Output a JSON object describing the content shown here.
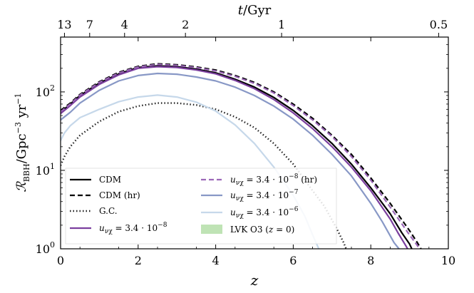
{
  "chart_data": {
    "type": "line",
    "xlabel": "z",
    "ylabel": "R_BBH/Gpc^-3 yr^-1",
    "top_axis_label": "t/Gyr",
    "top_ticks": [
      {
        "label": "13",
        "z": 0.1
      },
      {
        "label": "7",
        "z": 0.75
      },
      {
        "label": "4",
        "z": 1.65
      },
      {
        "label": "2",
        "z": 3.22
      },
      {
        "label": "1",
        "z": 5.7
      },
      {
        "label": "0.5",
        "z": 9.75
      }
    ],
    "xlim": [
      0,
      10
    ],
    "ylim": [
      1,
      500
    ],
    "yscale": "log",
    "x_ticks": [
      "0",
      "2",
      "4",
      "6",
      "8",
      "10"
    ],
    "y_ticks": [
      {
        "label": "10^0",
        "value": 1
      },
      {
        "label": "10^1",
        "value": 10
      },
      {
        "label": "10^2",
        "value": 100
      }
    ],
    "legend_position": "lower-left",
    "series": [
      {
        "name": "CDM",
        "color": "#000000",
        "dash": "solid",
        "width": 2.2,
        "x": [
          0,
          0.25,
          0.5,
          1,
          1.5,
          2,
          2.5,
          3,
          3.5,
          4,
          4.5,
          5,
          5.5,
          6,
          6.5,
          7,
          7.5,
          8,
          8.5,
          8.8,
          9.0,
          9.1
        ],
        "y": [
          55,
          70,
          90,
          130,
          170,
          205,
          215,
          210,
          195,
          175,
          145,
          115,
          85,
          58,
          37,
          22,
          12,
          6,
          2.8,
          1.6,
          1.15,
          0.9
        ]
      },
      {
        "name": "CDM (hr)",
        "color": "#000000",
        "dash": "7,4",
        "width": 2.2,
        "x": [
          0,
          0.25,
          0.5,
          1,
          1.5,
          2,
          2.5,
          3,
          3.5,
          4,
          4.5,
          5,
          5.5,
          6,
          6.5,
          7,
          7.5,
          8,
          8.5,
          9.0,
          9.2,
          9.35
        ],
        "y": [
          58,
          72,
          93,
          135,
          178,
          212,
          228,
          222,
          208,
          190,
          162,
          132,
          100,
          70,
          46,
          28,
          16,
          8,
          3.8,
          1.7,
          1.2,
          0.9
        ]
      },
      {
        "name": "G.C.",
        "color": "#222222",
        "dash": "1.5,3",
        "width": 2.4,
        "x": [
          0,
          0.1,
          0.25,
          0.5,
          1,
          1.5,
          2,
          2.5,
          3,
          3.5,
          4,
          4.5,
          5,
          5.5,
          6,
          6.5,
          6.8,
          7.1,
          7.3,
          7.4
        ],
        "y": [
          11.5,
          15,
          20,
          28,
          42,
          56,
          66,
          72,
          72,
          68,
          60,
          48,
          35,
          22,
          12,
          5.5,
          3.5,
          1.9,
          1.2,
          0.9
        ]
      },
      {
        "name": "u_nuchi = 3.4·10^-8",
        "color": "#7b3f9e",
        "dash": "solid",
        "width": 2.2,
        "x": [
          0,
          0.25,
          0.5,
          1,
          1.5,
          2,
          2.5,
          3,
          3.5,
          4,
          4.5,
          5,
          5.5,
          6,
          6.5,
          7,
          7.5,
          8,
          8.5,
          8.7,
          8.9,
          9.0
        ],
        "y": [
          53,
          67,
          86,
          125,
          165,
          200,
          210,
          205,
          190,
          170,
          140,
          110,
          80,
          54,
          34,
          20,
          11,
          5.5,
          2.4,
          1.6,
          1.1,
          0.9
        ]
      },
      {
        "name": "u_nuchi = 3.4·10^-8 (hr)",
        "color": "#9c68b8",
        "dash": "7,4",
        "width": 2.2,
        "x": [
          0,
          0.25,
          0.5,
          1,
          1.5,
          2,
          2.5,
          3,
          3.5,
          4,
          4.5,
          5,
          5.5,
          6,
          6.5,
          7,
          7.5,
          8,
          8.5,
          9.0,
          9.2,
          9.3
        ],
        "y": [
          56,
          70,
          91,
          132,
          174,
          208,
          224,
          218,
          204,
          185,
          158,
          128,
          97,
          67,
          44,
          27,
          15,
          7.5,
          3.4,
          1.5,
          1.1,
          0.9
        ]
      },
      {
        "name": "u_nuchi = 3.4·10^-7",
        "color": "#8898c6",
        "dash": "solid",
        "width": 2.2,
        "x": [
          0,
          0.25,
          0.5,
          1,
          1.5,
          2,
          2.5,
          3,
          3.5,
          4,
          4.5,
          5,
          5.5,
          6,
          6.5,
          7,
          7.5,
          8,
          8.3,
          8.6,
          8.8
        ],
        "y": [
          44,
          55,
          72,
          105,
          138,
          162,
          172,
          168,
          155,
          138,
          115,
          90,
          66,
          45,
          28,
          16,
          8.5,
          3.8,
          2.2,
          1.2,
          0.9
        ]
      },
      {
        "name": "u_nuchi = 3.4·10^-6",
        "color": "#c6d8ea",
        "dash": "solid",
        "width": 2.2,
        "x": [
          0,
          0.1,
          0.25,
          0.5,
          1,
          1.5,
          2,
          2.5,
          3,
          3.5,
          4,
          4.5,
          5,
          5.5,
          6,
          6.3,
          6.5,
          6.7
        ],
        "y": [
          24,
          30,
          37,
          47,
          60,
          75,
          86,
          91,
          86,
          74,
          57,
          38,
          22,
          11,
          4.8,
          2.6,
          1.5,
          0.9
        ]
      }
    ],
    "band": {
      "name": "LVK O3 (z = 0)",
      "color": "#bfe3b5",
      "x": [
        -0.15,
        0
      ],
      "y": [
        16,
        61
      ]
    },
    "legend": {
      "col1": [
        "CDM",
        "CDM (hr)",
        "G.C.",
        "u_nuchi = 3.4·10^-8"
      ],
      "col2": [
        "u_nuchi = 3.4·10^-8 (hr)",
        "u_nuchi = 3.4·10^-7",
        "u_nuchi = 3.4·10^-6",
        "LVK O3 (z = 0)"
      ]
    }
  }
}
